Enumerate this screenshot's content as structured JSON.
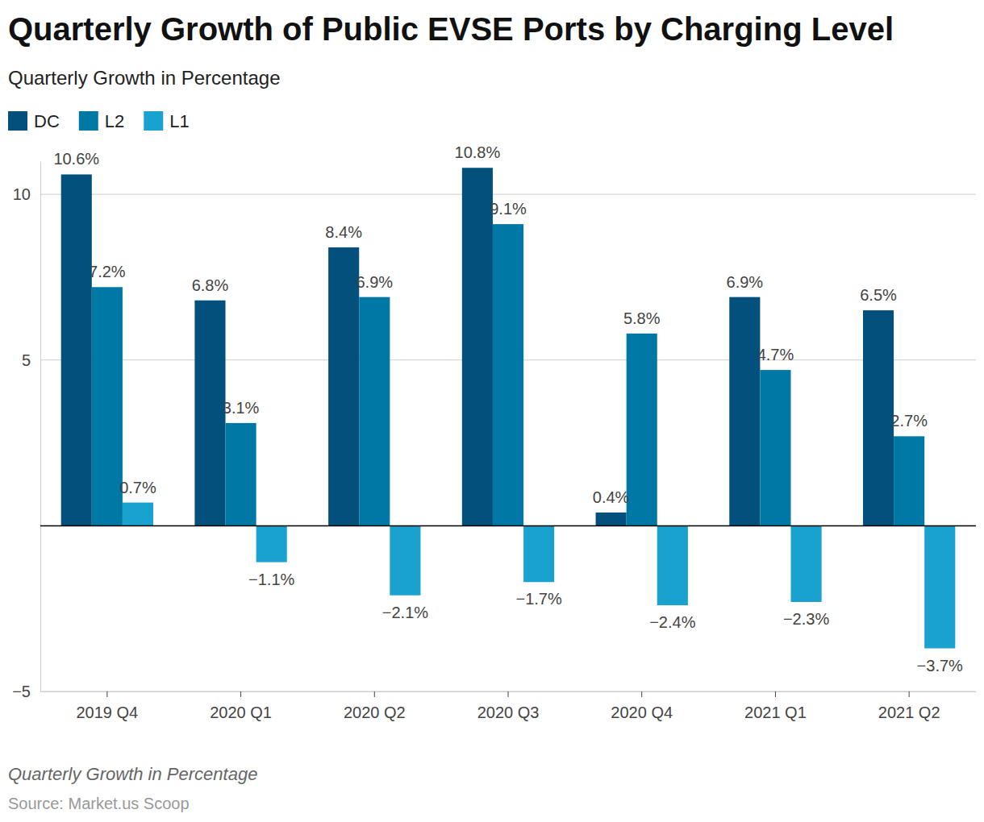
{
  "chart_data": {
    "type": "bar",
    "title": "Quarterly Growth of Public EVSE Ports by Charging Level",
    "subtitle": "Quarterly Growth in Percentage",
    "caption": "Quarterly Growth in Percentage",
    "source": "Source: Market.us Scoop",
    "categories": [
      "2019 Q4",
      "2020 Q1",
      "2020 Q2",
      "2020 Q3",
      "2020 Q4",
      "2021 Q1",
      "2021 Q2"
    ],
    "series": [
      {
        "name": "DC",
        "color": "#02507b",
        "values": [
          10.6,
          6.8,
          8.4,
          10.8,
          0.4,
          6.9,
          6.5
        ],
        "value_labels": [
          "10.6%",
          "6.8%",
          "8.4%",
          "10.8%",
          "0.4%",
          "6.9%",
          "6.5%"
        ]
      },
      {
        "name": "L2",
        "color": "#0078a6",
        "values": [
          7.2,
          3.1,
          6.9,
          9.1,
          5.8,
          4.7,
          2.7
        ],
        "value_labels": [
          "7.2%",
          "3.1%",
          "6.9%",
          "9.1%",
          "5.8%",
          "4.7%",
          "2.7%"
        ]
      },
      {
        "name": "L1",
        "color": "#19a2cf",
        "values": [
          0.7,
          -1.1,
          -2.1,
          -1.7,
          -2.4,
          -2.3,
          -3.7
        ],
        "value_labels": [
          "0.7%",
          "−1.1%",
          "−2.1%",
          "−1.7%",
          "−2.4%",
          "−2.3%",
          "−3.7%"
        ]
      }
    ],
    "ylim": [
      -5,
      11
    ],
    "yticks": [
      {
        "value": -5,
        "label": "−5"
      },
      5,
      10
    ],
    "grid": true,
    "data_labels": true,
    "legend": "top-left"
  }
}
